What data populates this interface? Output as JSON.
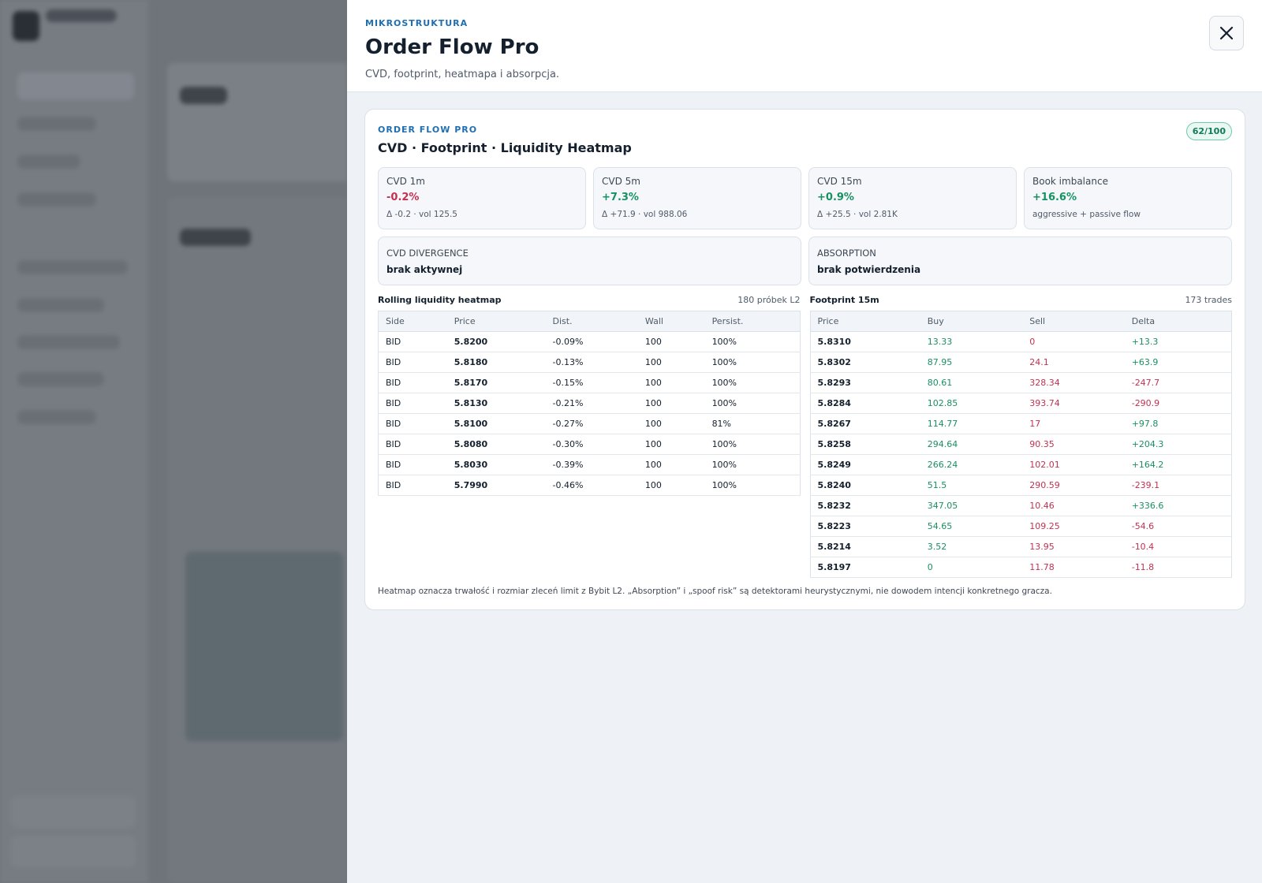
{
  "header": {
    "eyebrow": "MIKROSTRUKTURA",
    "title": "Order Flow Pro",
    "subtitle": "CVD, footprint, heatmapa i absorpcja."
  },
  "card": {
    "eyebrow": "ORDER FLOW PRO",
    "title": "CVD · Footprint · Liquidity Heatmap",
    "badge": "62/100"
  },
  "metrics": [
    {
      "label": "CVD 1m",
      "value": "-0.2%",
      "sub": "Δ -0.2 · vol 125.5"
    },
    {
      "label": "CVD 5m",
      "value": "+7.3%",
      "sub": "Δ +71.9 · vol 988.06"
    },
    {
      "label": "CVD 15m",
      "value": "+0.9%",
      "sub": "Δ +25.5 · vol 2.81K"
    },
    {
      "label": "Book imbalance",
      "value": "+16.6%",
      "sub": "aggressive + passive flow"
    }
  ],
  "signals": [
    {
      "label": "CVD DIVERGENCE",
      "value": "brak aktywnej"
    },
    {
      "label": "ABSORPTION",
      "value": "brak potwierdzenia"
    }
  ],
  "heatmap": {
    "title": "Rolling liquidity heatmap",
    "note": "180 próbek L2",
    "columns": [
      "Side",
      "Price",
      "Dist.",
      "Wall",
      "Persist."
    ],
    "rows": [
      [
        "BID",
        "5.8200",
        "-0.09%",
        "100",
        "100%"
      ],
      [
        "BID",
        "5.8180",
        "-0.13%",
        "100",
        "100%"
      ],
      [
        "BID",
        "5.8170",
        "-0.15%",
        "100",
        "100%"
      ],
      [
        "BID",
        "5.8130",
        "-0.21%",
        "100",
        "100%"
      ],
      [
        "BID",
        "5.8100",
        "-0.27%",
        "100",
        "81%"
      ],
      [
        "BID",
        "5.8080",
        "-0.30%",
        "100",
        "100%"
      ],
      [
        "BID",
        "5.8030",
        "-0.39%",
        "100",
        "100%"
      ],
      [
        "BID",
        "5.7990",
        "-0.46%",
        "100",
        "100%"
      ]
    ]
  },
  "footprint": {
    "title": "Footprint 15m",
    "note": "173 trades",
    "columns": [
      "Price",
      "Buy",
      "Sell",
      "Delta"
    ],
    "rows": [
      [
        "5.8310",
        "13.33",
        "0",
        "+13.3"
      ],
      [
        "5.8302",
        "87.95",
        "24.1",
        "+63.9"
      ],
      [
        "5.8293",
        "80.61",
        "328.34",
        "-247.7"
      ],
      [
        "5.8284",
        "102.85",
        "393.74",
        "-290.9"
      ],
      [
        "5.8267",
        "114.77",
        "17",
        "+97.8"
      ],
      [
        "5.8258",
        "294.64",
        "90.35",
        "+204.3"
      ],
      [
        "5.8249",
        "266.24",
        "102.01",
        "+164.2"
      ],
      [
        "5.8240",
        "51.5",
        "290.59",
        "-239.1"
      ],
      [
        "5.8232",
        "347.05",
        "10.46",
        "+336.6"
      ],
      [
        "5.8223",
        "54.65",
        "109.25",
        "-54.6"
      ],
      [
        "5.8214",
        "3.52",
        "13.95",
        "-10.4"
      ],
      [
        "5.8197",
        "0",
        "11.78",
        "-11.8"
      ]
    ]
  },
  "footer": "Heatmap oznacza trwałość i rozmiar zleceń limit z Bybit L2. „Absorption” i „spoof risk” są detektorami heurystycznymi, nie dowodem intencji konkretnego gracza."
}
